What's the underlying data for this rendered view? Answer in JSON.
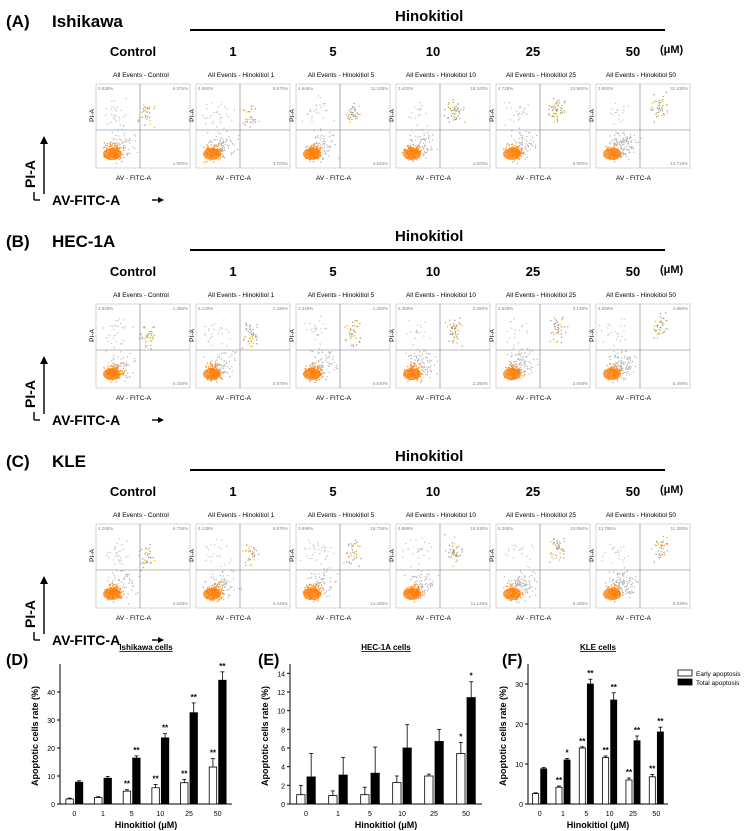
{
  "flow": {
    "hinokitiol": "Hinokitiol",
    "unit": "(μM)",
    "concentrations": [
      "Control",
      "1",
      "5",
      "10",
      "25",
      "50"
    ],
    "y_axis": "PI-A",
    "x_axis": "AV-FITC-A",
    "plot_x_label": "AV - FITC-A",
    "plot_y_label": "PI-A",
    "panels": [
      {
        "label": "(A)",
        "cell": "Ishikawa",
        "titles": [
          "All Events - Control",
          "All Events - Hinokitiol 1",
          "All Events - Hinokitiol 5",
          "All Events - Hinokitiol 10",
          "All Events - Hinokitiol 25",
          "All Events - Hinokitiol 50"
        ],
        "q1": [
          "0.938%",
          "4.950%",
          "4.646%",
          "3.420%",
          "4.728%",
          "3.950%"
        ],
        "q2": [
          "6.376%",
          "8.970%",
          "11.108%",
          "18.100%",
          "24.900%",
          "31.838%"
        ],
        "q4": [
          "1.900%",
          "3.700%",
          "4.546%",
          "4.600%",
          "6.900%",
          "14.718%"
        ]
      },
      {
        "label": "(B)",
        "cell": "HEC-1A",
        "titles": [
          "All Events - Control",
          "All Events - Hinokitiol 1",
          "All Events - Hinokitiol 5",
          "All Events - Hinokitiol 10",
          "All Events - Hinokitiol 25",
          "All Events - Hinokitiol 50"
        ],
        "q1": [
          "3.928%",
          "5.130%",
          "3.448%",
          "3.360%",
          "3.528%",
          "4.858%"
        ],
        "q2": [
          "1.386%",
          "1.438%",
          "1.260%",
          "2.060%",
          "3.138%",
          "4.868%"
        ],
        "q4": [
          "0.438%",
          "0.878%",
          "0.640%",
          "2.260%",
          "3.008%",
          "5.498%"
        ]
      },
      {
        "label": "(C)",
        "cell": "KLE",
        "titles": [
          "All Events - Control",
          "All Events - Hinokitiol 1",
          "All Events - Hinokitiol 5",
          "All Events - Hinokitiol 10",
          "All Events - Hinokitiol 25",
          "All Events - Hinokitiol 50"
        ],
        "q1": [
          "4.288%",
          "4.138%",
          "3.998%",
          "4.888%",
          "5.388%",
          "13.788%"
        ],
        "q2": [
          "6.738%",
          "6.878%",
          "16.738%",
          "15.938%",
          "10.060%",
          "11.288%"
        ],
        "q4": [
          "2.538%",
          "4.448%",
          "14.288%",
          "11.148%",
          "6.288%",
          "5.938%"
        ]
      }
    ]
  },
  "chart_data": [
    {
      "panel": "(D)",
      "type": "bar",
      "title": "Ishikawa cells",
      "xlabel": "Hinokitiol (μM)",
      "ylabel": "Apoptotic cells rate (%)",
      "categories": [
        "0",
        "1",
        "5",
        "10",
        "25",
        "50"
      ],
      "ylim": [
        0,
        50
      ],
      "yticks": [
        0,
        10,
        20,
        30,
        40
      ],
      "series": [
        {
          "name": "Early apoptosis",
          "values": [
            1.8,
            2.3,
            4.6,
            5.8,
            7.6,
            13.2
          ],
          "errors": [
            0.3,
            0.3,
            0.5,
            1.2,
            1.2,
            3.0
          ],
          "sig": [
            "",
            "",
            "**",
            "**",
            "**",
            "**"
          ]
        },
        {
          "name": "Total apoptosis",
          "values": [
            7.8,
            9.2,
            16.4,
            23.6,
            32.6,
            44.2
          ],
          "errors": [
            0.5,
            0.6,
            0.8,
            1.5,
            3.5,
            3.0
          ],
          "sig": [
            "",
            "",
            "**",
            "**",
            "**",
            "**"
          ]
        }
      ]
    },
    {
      "panel": "(E)",
      "type": "bar",
      "title": "HEC-1A cells",
      "xlabel": "Hinokitiol (μM)",
      "ylabel": "Apoptotic cells rate (%)",
      "categories": [
        "0",
        "1",
        "5",
        "10",
        "25",
        "50"
      ],
      "ylim": [
        0,
        15
      ],
      "yticks": [
        0,
        2,
        4,
        6,
        8,
        10,
        12,
        14
      ],
      "series": [
        {
          "name": "Early apoptosis",
          "values": [
            1.0,
            0.9,
            1.0,
            2.3,
            3.0,
            5.4
          ],
          "errors": [
            1.0,
            0.5,
            0.8,
            0.7,
            0.2,
            1.2
          ],
          "sig": [
            "",
            "",
            "",
            "",
            "",
            "*"
          ]
        },
        {
          "name": "Total apoptosis",
          "values": [
            2.9,
            3.1,
            3.3,
            6.0,
            6.7,
            11.4
          ],
          "errors": [
            2.5,
            1.9,
            2.8,
            2.5,
            1.3,
            1.7
          ],
          "sig": [
            "",
            "",
            "",
            "",
            "",
            "*"
          ]
        }
      ]
    },
    {
      "panel": "(F)",
      "type": "bar",
      "title": "KLE cells",
      "xlabel": "Hinokitiol (μM)",
      "ylabel": "Apoptotic cells rate (%)",
      "categories": [
        "0",
        "1",
        "5",
        "10",
        "25",
        "50"
      ],
      "ylim": [
        0,
        35
      ],
      "yticks": [
        0,
        10,
        20,
        30
      ],
      "series": [
        {
          "name": "Early apoptosis",
          "values": [
            2.6,
            4.2,
            14.0,
            11.6,
            6.0,
            6.8
          ],
          "errors": [
            0.2,
            0.3,
            0.3,
            0.4,
            0.5,
            0.6
          ],
          "sig": [
            "",
            "**",
            "**",
            "**",
            "**",
            "**"
          ]
        },
        {
          "name": "Total apoptosis",
          "values": [
            8.8,
            11.0,
            30.0,
            26.0,
            15.8,
            18.0
          ],
          "errors": [
            0.3,
            0.4,
            1.2,
            1.8,
            1.2,
            1.2
          ],
          "sig": [
            "",
            "*",
            "**",
            "**",
            "**",
            "**"
          ]
        }
      ],
      "legend": [
        "Early apoptosis",
        "Total apoptosis"
      ]
    }
  ]
}
